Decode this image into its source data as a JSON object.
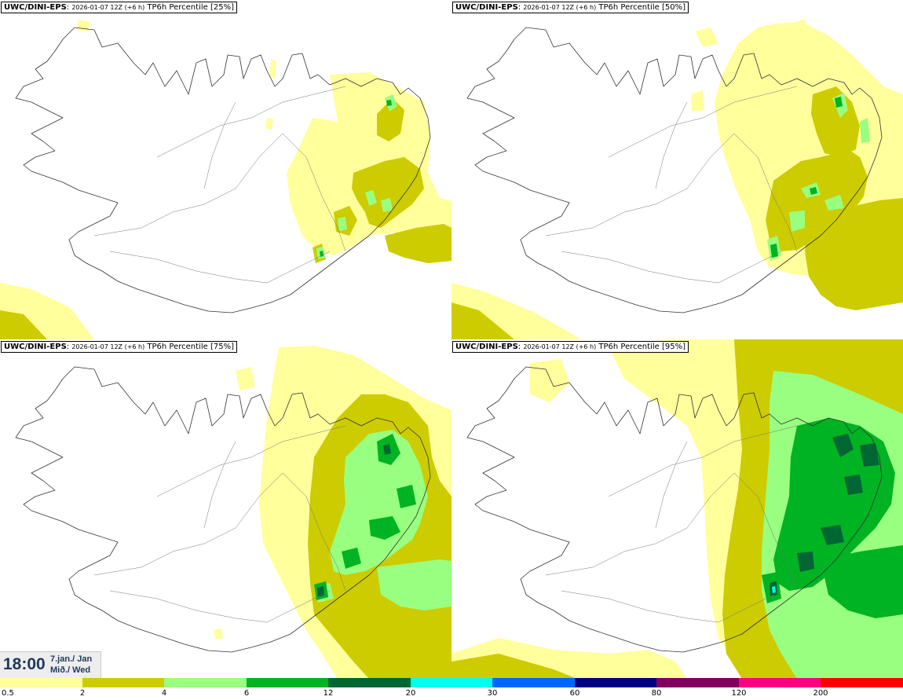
{
  "panels": [
    {
      "model": "UWC/DINI-EPS",
      "run": "2026-01-07 12Z (+6 h)",
      "field": "TP6h Percentile [25%]",
      "level": 0
    },
    {
      "model": "UWC/DINI-EPS",
      "run": "2026-01-07 12Z (+6 h)",
      "field": "TP6h Percentile [50%]",
      "level": 1
    },
    {
      "model": "UWC/DINI-EPS",
      "run": "2026-01-07 12Z (+6 h)",
      "field": "TP6h Percentile [75%]",
      "level": 2
    },
    {
      "model": "UWC/DINI-EPS",
      "run": "2026-01-07 12Z (+6 h)",
      "field": "TP6h Percentile [95%]",
      "level": 3
    }
  ],
  "time": {
    "clock": "18:00",
    "date_line1": "7.jan./ Jan",
    "date_line2": "Mið./ Wed"
  },
  "legend": {
    "labels": [
      "0.5",
      "2",
      "4",
      "6",
      "12",
      "20",
      "30",
      "60",
      "80",
      "120",
      "200"
    ],
    "colors": [
      "#ffff9b",
      "#cccc00",
      "#99ff80",
      "#00b322",
      "#006633",
      "#00ffee",
      "#0066ff",
      "#000080",
      "#800060",
      "#ff0080",
      "#ff0000"
    ]
  }
}
